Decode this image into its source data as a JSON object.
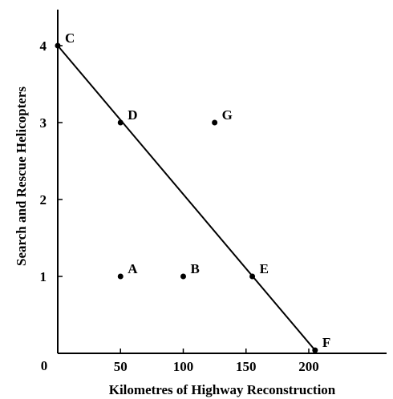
{
  "chart_data": {
    "type": "scatter",
    "title": "",
    "xlabel": "Kilometres of Highway Reconstruction",
    "ylabel": "Search and Rescue Helicopters",
    "origin_label": "0",
    "xlim": [
      0,
      270
    ],
    "ylim": [
      0,
      4.6
    ],
    "x_ticks": [
      50,
      100,
      150,
      200
    ],
    "x_tick_labels": [
      "50",
      "100",
      "150",
      "200"
    ],
    "y_ticks": [
      1,
      2,
      3,
      4
    ],
    "y_tick_labels": [
      "1",
      "2",
      "3",
      "4"
    ],
    "grid": false,
    "frontier_line": {
      "from": [
        0,
        4
      ],
      "to": [
        205,
        0.04
      ]
    },
    "points": [
      {
        "label": "C",
        "x": 0,
        "y": 4
      },
      {
        "label": "D",
        "x": 50,
        "y": 3
      },
      {
        "label": "G",
        "x": 125,
        "y": 3
      },
      {
        "label": "A",
        "x": 50,
        "y": 1
      },
      {
        "label": "B",
        "x": 100,
        "y": 1
      },
      {
        "label": "E",
        "x": 155,
        "y": 1
      },
      {
        "label": "F",
        "x": 205,
        "y": 0.04
      }
    ]
  }
}
